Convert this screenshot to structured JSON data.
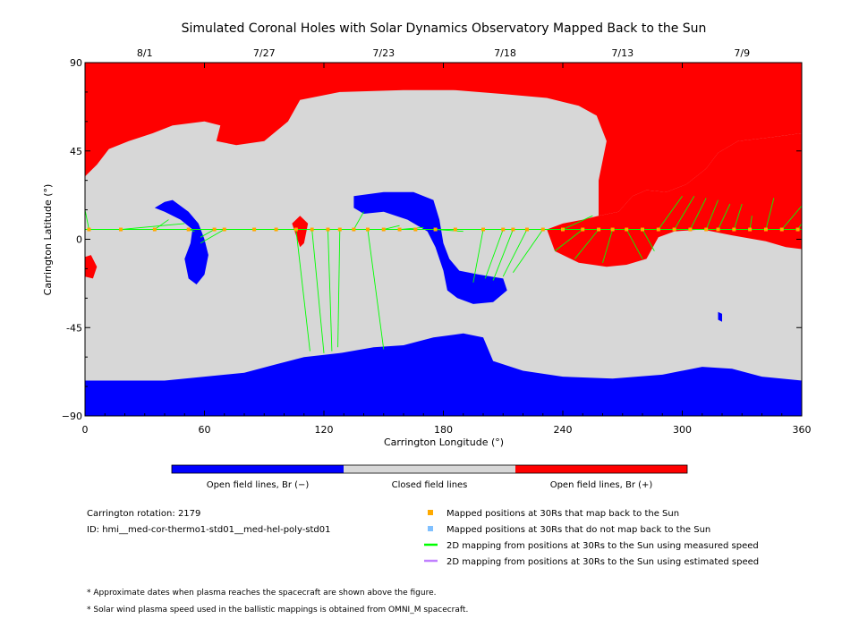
{
  "chart_data": {
    "type": "map",
    "title": "Simulated Coronal Holes with Solar Dynamics Observatory Mapped Back to the Sun",
    "xlabel": "Carrington Longitude (°)",
    "ylabel": "Carrington Latitude (°)",
    "xlim": [
      0,
      360
    ],
    "ylim": [
      -90,
      90
    ],
    "x_ticks": [
      {
        "value": 0,
        "label": "0"
      },
      {
        "value": 60,
        "label": "60"
      },
      {
        "value": 120,
        "label": "120"
      },
      {
        "value": 180,
        "label": "180"
      },
      {
        "value": 240,
        "label": "240"
      },
      {
        "value": 300,
        "label": "300"
      },
      {
        "value": 360,
        "label": "360"
      }
    ],
    "y_ticks": [
      {
        "value": 90,
        "label": "90"
      },
      {
        "value": 45,
        "label": "45"
      },
      {
        "value": 0,
        "label": "0"
      },
      {
        "value": -45,
        "label": "-45"
      },
      {
        "value": -90,
        "label": "−90"
      }
    ],
    "date_ticks": [
      {
        "longitude": 30,
        "label": "8/1"
      },
      {
        "longitude": 90,
        "label": "7/27"
      },
      {
        "longitude": 150,
        "label": "7/23"
      },
      {
        "longitude": 211,
        "label": "7/18"
      },
      {
        "longitude": 270,
        "label": "7/13"
      },
      {
        "longitude": 330,
        "label": "7/9"
      }
    ],
    "colorbar": {
      "segments": [
        {
          "label": "Open field lines, Br (−)",
          "color": "#0000ff"
        },
        {
          "label": "Closed field lines",
          "color": "#d7d7d7"
        },
        {
          "label": "Open field lines, Br (+)",
          "color": "#ff0000"
        }
      ]
    },
    "regions": [
      {
        "name": "open-positive-north",
        "polarity": "positive",
        "color": "#ff0000",
        "polygon": [
          [
            0,
            90
          ],
          [
            360,
            90
          ],
          [
            360,
            54
          ],
          [
            345,
            52
          ],
          [
            328,
            50
          ],
          [
            318,
            44
          ],
          [
            312,
            36
          ],
          [
            302,
            28
          ],
          [
            292,
            24
          ],
          [
            282,
            25
          ],
          [
            275,
            22
          ],
          [
            268,
            14
          ],
          [
            258,
            12
          ],
          [
            258,
            30
          ],
          [
            262,
            50
          ],
          [
            257,
            63
          ],
          [
            248,
            68
          ],
          [
            232,
            72
          ],
          [
            210,
            74
          ],
          [
            185,
            76
          ],
          [
            160,
            76
          ],
          [
            128,
            75
          ],
          [
            108,
            71
          ],
          [
            102,
            60
          ],
          [
            90,
            50
          ],
          [
            76,
            48
          ],
          [
            66,
            50
          ],
          [
            68,
            58
          ],
          [
            60,
            60
          ],
          [
            44,
            58
          ],
          [
            34,
            54
          ],
          [
            22,
            50
          ],
          [
            12,
            46
          ],
          [
            6,
            38
          ],
          [
            0,
            32
          ]
        ]
      },
      {
        "name": "open-positive-equatorial",
        "polarity": "positive",
        "color": "#ff0000",
        "polygon": [
          [
            258,
            12
          ],
          [
            268,
            14
          ],
          [
            275,
            22
          ],
          [
            282,
            25
          ],
          [
            292,
            24
          ],
          [
            302,
            28
          ],
          [
            312,
            36
          ],
          [
            318,
            44
          ],
          [
            328,
            50
          ],
          [
            345,
            52
          ],
          [
            360,
            54
          ],
          [
            360,
            -5
          ],
          [
            352,
            -4
          ],
          [
            342,
            -1
          ],
          [
            325,
            2
          ],
          [
            310,
            5
          ],
          [
            296,
            4
          ],
          [
            288,
            1
          ],
          [
            282,
            -10
          ],
          [
            272,
            -13
          ],
          [
            262,
            -14
          ],
          [
            248,
            -12
          ],
          [
            236,
            -6
          ],
          [
            232,
            5
          ],
          [
            240,
            8
          ],
          [
            250,
            10
          ]
        ]
      },
      {
        "name": "open-positive-limb",
        "polarity": "positive",
        "color": "#ff0000",
        "polygon": [
          [
            0,
            -9
          ],
          [
            3,
            -8
          ],
          [
            6,
            -14
          ],
          [
            4,
            -20
          ],
          [
            0,
            -19
          ]
        ]
      },
      {
        "name": "open-positive-filament",
        "polarity": "positive",
        "color": "#ff0000",
        "polygon": [
          [
            104,
            8
          ],
          [
            108,
            12
          ],
          [
            112,
            8
          ],
          [
            110,
            -2
          ],
          [
            108,
            -4
          ],
          [
            106,
            2
          ]
        ]
      },
      {
        "name": "open-negative-south",
        "polarity": "negative",
        "color": "#0000ff",
        "polygon": [
          [
            0,
            -90
          ],
          [
            360,
            -90
          ],
          [
            360,
            -72
          ],
          [
            340,
            -70
          ],
          [
            325,
            -66
          ],
          [
            310,
            -65
          ],
          [
            290,
            -69
          ],
          [
            265,
            -71
          ],
          [
            240,
            -70
          ],
          [
            220,
            -67
          ],
          [
            205,
            -62
          ],
          [
            200,
            -50
          ],
          [
            190,
            -48
          ],
          [
            175,
            -50
          ],
          [
            160,
            -54
          ],
          [
            145,
            -55
          ],
          [
            128,
            -58
          ],
          [
            110,
            -60
          ],
          [
            95,
            -64
          ],
          [
            80,
            -68
          ],
          [
            60,
            -70
          ],
          [
            40,
            -72
          ],
          [
            20,
            -72
          ],
          [
            0,
            -72
          ]
        ]
      },
      {
        "name": "open-negative-northern-loop",
        "polarity": "negative",
        "color": "#0000ff",
        "polygon": [
          [
            135,
            22
          ],
          [
            150,
            24
          ],
          [
            165,
            24
          ],
          [
            175,
            20
          ],
          [
            178,
            10
          ],
          [
            180,
            -2
          ],
          [
            183,
            -10
          ],
          [
            188,
            -16
          ],
          [
            198,
            -18
          ],
          [
            210,
            -20
          ],
          [
            212,
            -26
          ],
          [
            205,
            -32
          ],
          [
            195,
            -33
          ],
          [
            187,
            -30
          ],
          [
            182,
            -26
          ],
          [
            180,
            -16
          ],
          [
            176,
            -4
          ],
          [
            172,
            4
          ],
          [
            162,
            10
          ],
          [
            150,
            14
          ],
          [
            140,
            13
          ],
          [
            135,
            16
          ]
        ]
      },
      {
        "name": "open-negative-western",
        "polarity": "negative",
        "color": "#0000ff",
        "polygon": [
          [
            44,
            20
          ],
          [
            52,
            14
          ],
          [
            57,
            8
          ],
          [
            60,
            0
          ],
          [
            62,
            -8
          ],
          [
            60,
            -18
          ],
          [
            56,
            -23
          ],
          [
            52,
            -20
          ],
          [
            50,
            -10
          ],
          [
            53,
            -2
          ],
          [
            54,
            5
          ],
          [
            48,
            10
          ],
          [
            40,
            14
          ],
          [
            35,
            16
          ],
          [
            40,
            19
          ]
        ]
      },
      {
        "name": "open-negative-small",
        "polarity": "negative",
        "color": "#0000ff",
        "polygon": [
          [
            318,
            -37
          ],
          [
            320,
            -38
          ],
          [
            320,
            -42
          ],
          [
            318,
            -41
          ]
        ]
      }
    ],
    "mapped_points_30Rs_back_to_sun": {
      "color": "#ffaa00",
      "lat_equator": 5,
      "longitudes": [
        2,
        18,
        35,
        52,
        65,
        70,
        85,
        96,
        106,
        114,
        122,
        128,
        135,
        142,
        150,
        158,
        166,
        176,
        186,
        200,
        210,
        215,
        222,
        230,
        240,
        250,
        258,
        265,
        272,
        280,
        288,
        296,
        304,
        312,
        318,
        326,
        334,
        342,
        350,
        358
      ]
    },
    "mapped_points_30Rs_not_back_to_sun": {
      "color": "#80c0ff",
      "longitudes": []
    },
    "field_line_mappings_measured_speed": {
      "color": "#00ff00",
      "lines": [
        [
          [
            2,
            5
          ],
          [
            0,
            15
          ]
        ],
        [
          [
            18,
            5
          ],
          [
            50,
            8
          ]
        ],
        [
          [
            35,
            5
          ],
          [
            42,
            10
          ]
        ],
        [
          [
            52,
            5
          ],
          [
            55,
            4
          ]
        ],
        [
          [
            65,
            5
          ],
          [
            58,
            1
          ]
        ],
        [
          [
            70,
            5
          ],
          [
            58,
            -2
          ]
        ],
        [
          [
            106,
            5
          ],
          [
            113,
            -57
          ]
        ],
        [
          [
            114,
            5
          ],
          [
            120,
            -58
          ]
        ],
        [
          [
            122,
            5
          ],
          [
            124,
            -57
          ]
        ],
        [
          [
            128,
            5
          ],
          [
            127,
            -55
          ]
        ],
        [
          [
            135,
            5
          ],
          [
            140,
            14
          ]
        ],
        [
          [
            142,
            5
          ],
          [
            150,
            -56
          ]
        ],
        [
          [
            150,
            5
          ],
          [
            158,
            7
          ]
        ],
        [
          [
            158,
            5
          ],
          [
            170,
            6
          ]
        ],
        [
          [
            166,
            5
          ],
          [
            182,
            5
          ]
        ],
        [
          [
            176,
            5
          ],
          [
            190,
            4
          ]
        ],
        [
          [
            200,
            5
          ],
          [
            195,
            -22
          ]
        ],
        [
          [
            210,
            5
          ],
          [
            201,
            -20
          ]
        ],
        [
          [
            215,
            5
          ],
          [
            205,
            -21
          ]
        ],
        [
          [
            222,
            5
          ],
          [
            210,
            -19
          ]
        ],
        [
          [
            230,
            5
          ],
          [
            215,
            -17
          ]
        ],
        [
          [
            240,
            5
          ],
          [
            255,
            12
          ]
        ],
        [
          [
            250,
            5
          ],
          [
            236,
            -6
          ]
        ],
        [
          [
            258,
            5
          ],
          [
            246,
            -10
          ]
        ],
        [
          [
            265,
            5
          ],
          [
            260,
            -12
          ]
        ],
        [
          [
            272,
            5
          ],
          [
            280,
            -10
          ]
        ],
        [
          [
            280,
            5
          ],
          [
            286,
            -6
          ]
        ],
        [
          [
            288,
            5
          ],
          [
            300,
            22
          ]
        ],
        [
          [
            296,
            5
          ],
          [
            306,
            22
          ]
        ],
        [
          [
            304,
            5
          ],
          [
            312,
            21
          ]
        ],
        [
          [
            312,
            5
          ],
          [
            318,
            20
          ]
        ],
        [
          [
            318,
            5
          ],
          [
            324,
            18
          ]
        ],
        [
          [
            326,
            5
          ],
          [
            330,
            18
          ]
        ],
        [
          [
            334,
            5
          ],
          [
            335,
            12
          ]
        ],
        [
          [
            342,
            5
          ],
          [
            346,
            21
          ]
        ],
        [
          [
            350,
            5
          ],
          [
            360,
            17
          ]
        ],
        [
          [
            358,
            5
          ],
          [
            360,
            8
          ]
        ]
      ]
    },
    "field_line_mappings_estimated_speed": {
      "color": "#c080ff",
      "lines": []
    }
  },
  "info": {
    "rotation": "Carrington rotation: 2179",
    "id": "ID: hmi__med-cor-thermo1-std01__med-hel-poly-std01"
  },
  "legend": [
    {
      "label": "Mapped positions at 30Rs that map back to the Sun",
      "color": "#ffaa00",
      "marker": "square"
    },
    {
      "label": "Mapped positions at 30Rs that do not map back to the Sun",
      "color": "#80c0ff",
      "marker": "square"
    },
    {
      "label": "2D mapping from positions at 30Rs to the Sun using measured speed",
      "color": "#00ff00",
      "marker": "line"
    },
    {
      "label": "2D mapping from positions at 30Rs to the Sun using estimated speed",
      "color": "#c080ff",
      "marker": "line"
    }
  ],
  "footnotes": [
    "* Approximate dates when plasma reaches the spacecraft are shown above the figure.",
    "* Solar wind plasma speed used in the ballistic mappings is obtained from OMNI_M spacecraft."
  ]
}
